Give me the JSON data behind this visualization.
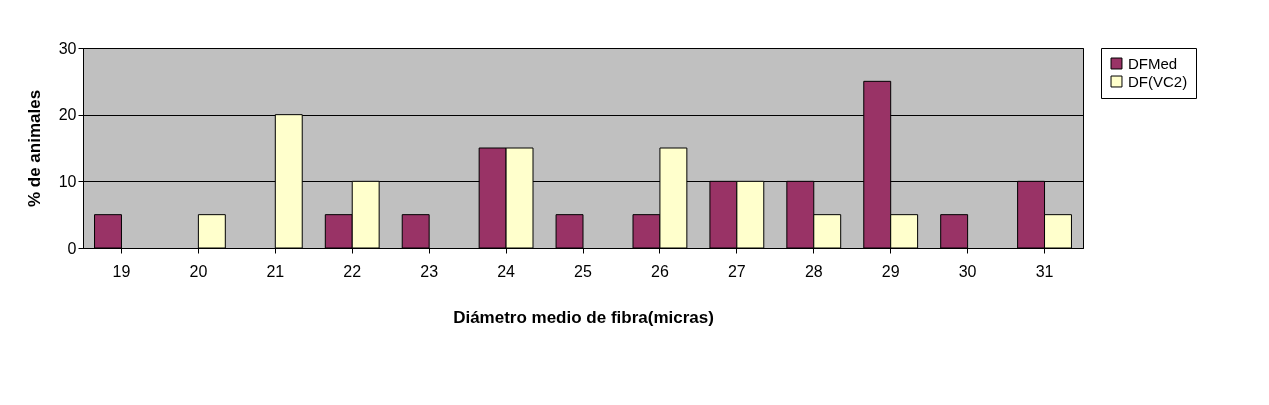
{
  "chart_data": {
    "type": "bar",
    "xlabel": "Diámetro medio de fibra(micras)",
    "ylabel": "% de animales",
    "categories": [
      "19",
      "20",
      "21",
      "22",
      "23",
      "24",
      "25",
      "26",
      "27",
      "28",
      "29",
      "30",
      "31"
    ],
    "series": [
      {
        "name": "DFMed",
        "color": "#993366",
        "values": [
          5,
          0,
          0,
          5,
          5,
          15,
          5,
          5,
          10,
          10,
          25,
          5,
          10
        ]
      },
      {
        "name": "DF(VC2)",
        "color": "#ffffcc",
        "values": [
          0,
          5,
          20,
          10,
          0,
          15,
          0,
          15,
          10,
          5,
          5,
          0,
          5
        ]
      }
    ],
    "ylim": [
      0,
      30
    ],
    "yticks": [
      0,
      10,
      20,
      30
    ],
    "grid": "y",
    "legend": "right"
  }
}
